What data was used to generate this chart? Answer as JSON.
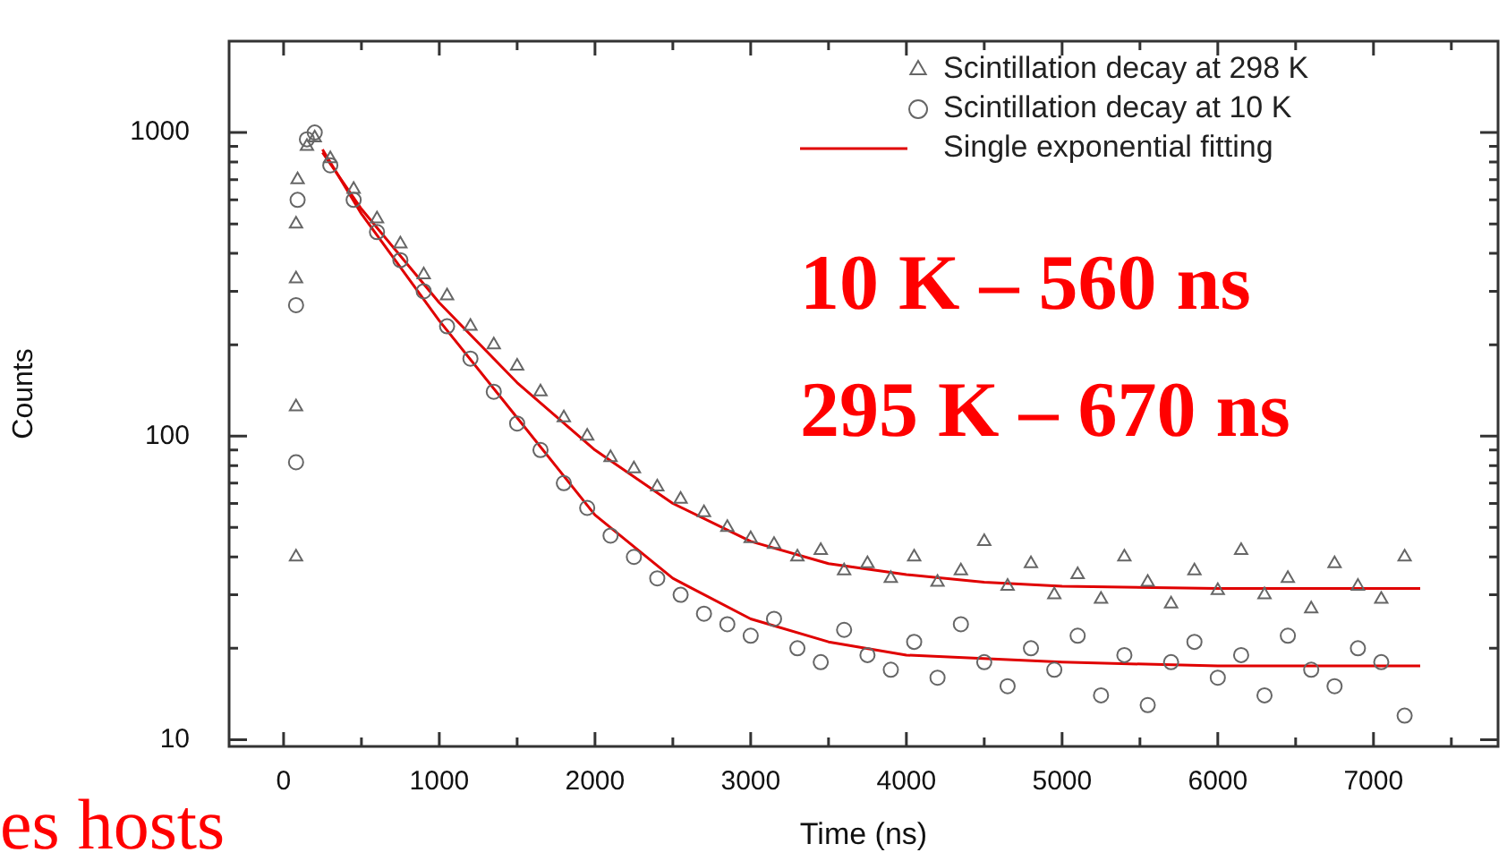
{
  "chart_data": {
    "type": "scatter",
    "xlabel": "Time (ns)",
    "ylabel": "Counts",
    "log": "y",
    "grid": false,
    "legend": "top right",
    "xlim": [
      -350,
      7800
    ],
    "ylim": [
      9.5,
      2000
    ],
    "xticks": [
      0,
      {
        "value": 500,
        "label": null
      },
      1000,
      {
        "value": 1500,
        "label": null
      },
      2000,
      {
        "value": 2500,
        "label": null
      },
      3000,
      {
        "value": 3500,
        "label": null
      },
      4000,
      {
        "value": 4500,
        "label": null
      },
      5000,
      {
        "value": 5500,
        "label": null
      },
      6000,
      {
        "value": 6500,
        "label": null
      },
      7000,
      {
        "value": 7500,
        "label": null
      }
    ],
    "yticks": [
      10,
      {
        "value": 20,
        "label": null
      },
      {
        "value": 30,
        "label": null
      },
      {
        "value": 40,
        "label": null
      },
      {
        "value": 50,
        "label": null
      },
      {
        "value": 60,
        "label": null
      },
      {
        "value": 70,
        "label": null
      },
      {
        "value": 80,
        "label": null
      },
      {
        "value": 90,
        "label": null
      },
      100,
      {
        "value": 200,
        "label": null
      },
      {
        "value": 300,
        "label": null
      },
      {
        "value": 400,
        "label": null
      },
      {
        "value": 500,
        "label": null
      },
      {
        "value": 600,
        "label": null
      },
      {
        "value": 700,
        "label": null
      },
      {
        "value": 800,
        "label": null
      },
      {
        "value": 900,
        "label": null
      },
      1000
    ],
    "annotations": [
      "10 K – 560 ns",
      "295 K – 670 ns",
      "es hosts"
    ],
    "series": [
      {
        "name": "Scintillation decay at 298 K",
        "type": "scatter",
        "marker": "triangle",
        "color": "#666666",
        "x": [
          80,
          80,
          80,
          80,
          90,
          150,
          200,
          300,
          450,
          600,
          750,
          900,
          1050,
          1200,
          1350,
          1500,
          1650,
          1800,
          1950,
          2100,
          2250,
          2400,
          2550,
          2700,
          2850,
          3000,
          3150,
          3300,
          3450,
          3600,
          3750,
          3900,
          4050,
          4200,
          4350,
          4500,
          4650,
          4800,
          4950,
          5100,
          5250,
          5400,
          5550,
          5700,
          5850,
          6000,
          6150,
          6300,
          6450,
          6600,
          6750,
          6900,
          7050,
          7200
        ],
        "values": [
          40,
          125,
          330,
          500,
          700,
          900,
          960,
          820,
          650,
          520,
          430,
          340,
          290,
          230,
          200,
          170,
          140,
          115,
          100,
          85,
          78,
          68,
          62,
          56,
          50,
          46,
          44,
          40,
          42,
          36,
          38,
          34,
          40,
          33,
          36,
          45,
          32,
          38,
          30,
          35,
          29,
          40,
          33,
          28,
          36,
          31,
          42,
          30,
          34,
          27,
          38,
          32,
          29,
          40
        ]
      },
      {
        "name": "Scintillation decay at 10 K",
        "type": "scatter",
        "marker": "circle",
        "color": "#666666",
        "x": [
          80,
          80,
          90,
          150,
          200,
          300,
          450,
          600,
          750,
          900,
          1050,
          1200,
          1350,
          1500,
          1650,
          1800,
          1950,
          2100,
          2250,
          2400,
          2550,
          2700,
          2850,
          3000,
          3150,
          3300,
          3450,
          3600,
          3750,
          3900,
          4050,
          4200,
          4350,
          4500,
          4650,
          4800,
          4950,
          5100,
          5250,
          5400,
          5550,
          5700,
          5850,
          6000,
          6150,
          6300,
          6450,
          6600,
          6750,
          6900,
          7050,
          7200
        ],
        "values": [
          82,
          270,
          600,
          950,
          1000,
          780,
          600,
          470,
          380,
          300,
          230,
          180,
          140,
          110,
          90,
          70,
          58,
          47,
          40,
          34,
          30,
          26,
          24,
          22,
          25,
          20,
          18,
          23,
          19,
          17,
          21,
          16,
          24,
          18,
          15,
          20,
          17,
          22,
          14,
          19,
          13,
          18,
          21,
          16,
          19,
          14,
          22,
          17,
          15,
          20,
          18,
          12
        ]
      },
      {
        "name": "Single exponential fitting",
        "type": "line",
        "marker": "none",
        "color": "#e00000",
        "x": [
          250,
          500,
          1000,
          1500,
          2000,
          2500,
          3000,
          3500,
          4000,
          4500,
          5000,
          6000,
          7300
        ],
        "values": [
          860,
          560,
          275,
          150,
          90,
          60,
          45,
          38,
          35,
          33,
          32,
          31.5,
          31.5
        ]
      },
      {
        "type": "line",
        "marker": "none",
        "color": "#e00000",
        "x": [
          250,
          500,
          1000,
          1500,
          2000,
          2500,
          3000,
          3500,
          4000,
          5000,
          6000,
          7300
        ],
        "values": [
          880,
          540,
          240,
          115,
          55,
          34,
          25,
          21,
          19,
          18,
          17.5,
          17.5
        ]
      }
    ]
  }
}
